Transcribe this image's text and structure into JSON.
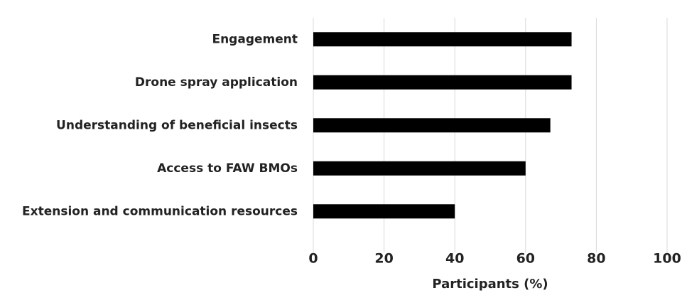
{
  "chart_data": {
    "type": "bar",
    "orientation": "horizontal",
    "x_label": "Participants (%)",
    "categories": [
      "Engagement",
      "Drone spray application",
      "Understanding of beneficial insects",
      "Access to FAW BMOs",
      "Extension and communication resources"
    ],
    "values": [
      73,
      73,
      67,
      60,
      40
    ],
    "color": "#000000",
    "xlim": [
      0,
      100
    ],
    "xticks": [
      0,
      20,
      40,
      60,
      80,
      100
    ],
    "grid": true
  }
}
